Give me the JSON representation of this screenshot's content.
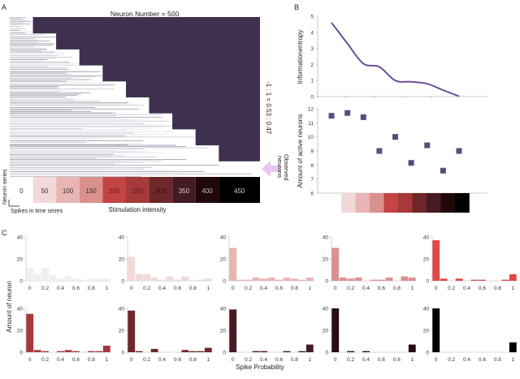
{
  "panels": {
    "A": {
      "label": "A",
      "title": "Neuron Number = 500",
      "ratio_text": "-1 : 1 = 0.53 : 0.47",
      "observed_label_line1": "Observed",
      "observed_label_line2": "neurons",
      "y_axis_label": "Neuron series",
      "x_scale_label": "Spikes in time seires",
      "x_axis_label": "Stimulation intensity",
      "background_color": "#3f3050",
      "arrow_color": "#e5c6f0",
      "stimulation_levels": [
        {
          "label": "0",
          "color": "#ffffff",
          "text_color": "#333333"
        },
        {
          "label": "50",
          "color": "#f2d9d9",
          "text_color": "#333333"
        },
        {
          "label": "100",
          "color": "#e8b5b4",
          "text_color": "#333333"
        },
        {
          "label": "150",
          "color": "#da918e",
          "text_color": "#333333"
        },
        {
          "label": "200",
          "color": "#c34442",
          "text_color": "#6a1e1e"
        },
        {
          "label": "250",
          "color": "#a6393a",
          "text_color": "#5a1a1a"
        },
        {
          "label": "300",
          "color": "#6e2728",
          "text_color": "#3a1010"
        },
        {
          "label": "350",
          "color": "#441a23",
          "text_color": "#d8c8c8"
        },
        {
          "label": "400",
          "color": "#200808",
          "text_color": "#c8b8b8"
        },
        {
          "label": "450",
          "color": "#000000",
          "text_color": "#cccccc"
        }
      ]
    },
    "B": {
      "label": "B"
    },
    "C": {
      "label": "C"
    }
  },
  "chart_data": [
    {
      "id": "B-top",
      "type": "line",
      "title": "",
      "xlabel": "",
      "ylabel": "Informationentropy",
      "ylim": [
        0,
        5
      ],
      "yticks": [
        "0",
        "1",
        "2",
        "3",
        "4",
        "5"
      ],
      "x": [
        1,
        2,
        3,
        4,
        5,
        6,
        7,
        8,
        9
      ],
      "xlim": [
        0,
        12
      ],
      "values": [
        4.6,
        3.3,
        2.05,
        1.85,
        1.0,
        0.92,
        0.8,
        0.4,
        0.02
      ],
      "color": "#6b4f9a"
    },
    {
      "id": "B-bottom",
      "type": "scatter",
      "title": "",
      "xlabel": "",
      "ylabel": "Amount of active neurons",
      "ylim": [
        6,
        12
      ],
      "yticks": [
        "6",
        "7",
        "8",
        "9",
        "10",
        "11",
        "12"
      ],
      "x": [
        1,
        2,
        3,
        4,
        5,
        6,
        7,
        8,
        9
      ],
      "xlim": [
        0,
        12
      ],
      "values": [
        11.5,
        11.7,
        11.4,
        9.0,
        10.0,
        8.15,
        9.4,
        7.6,
        9.0
      ],
      "color": "#5e4a80",
      "color_strip": [
        "#f2d9d9",
        "#e8b5b4",
        "#da918e",
        "#c34442",
        "#a6393a",
        "#6e2728",
        "#441a23",
        "#200808",
        "#000000"
      ]
    },
    {
      "id": "C-histograms",
      "type": "bar",
      "xlabel": "Spike Probability",
      "ylabel": "Amount of neuron",
      "ylim": [
        0,
        40
      ],
      "yticks": [
        "0",
        "20",
        "40"
      ],
      "xticks": [
        "0",
        "0.2",
        "0.4",
        "0.6",
        "0.8",
        "1"
      ],
      "bins": [
        0,
        0.1,
        0.2,
        0.3,
        0.4,
        0.5,
        0.6,
        0.7,
        0.8,
        0.9,
        1.0
      ],
      "series": [
        {
          "name": "0",
          "color": "#efefef",
          "values": [
            12,
            6,
            12,
            5,
            2,
            4,
            2,
            1,
            2,
            2,
            2
          ]
        },
        {
          "name": "50",
          "color": "#f2d9d9",
          "values": [
            22,
            6,
            6,
            3,
            1,
            4,
            1,
            4,
            0,
            1,
            2
          ]
        },
        {
          "name": "100",
          "color": "#e8b5b4",
          "values": [
            30,
            1,
            1,
            3,
            2,
            3,
            1,
            3,
            2,
            1,
            3
          ]
        },
        {
          "name": "150",
          "color": "#da918e",
          "values": [
            30,
            3,
            2,
            3,
            0,
            1,
            1,
            3,
            0,
            4,
            3
          ]
        },
        {
          "name": "200",
          "color": "#e04848",
          "values": [
            37,
            2,
            0,
            2,
            0,
            1,
            1,
            0,
            0,
            1,
            6
          ]
        },
        {
          "name": "250",
          "color": "#a6393a",
          "values": [
            35,
            2,
            1,
            0,
            1,
            2,
            1,
            0,
            1,
            1,
            6
          ]
        },
        {
          "name": "300",
          "color": "#6e2728",
          "values": [
            38,
            1,
            0,
            3,
            0,
            0,
            0,
            2,
            1,
            1,
            4
          ]
        },
        {
          "name": "350",
          "color": "#441a23",
          "values": [
            39,
            0,
            0,
            1,
            1,
            0,
            0,
            1,
            0,
            1,
            7
          ]
        },
        {
          "name": "400",
          "color": "#2a0c12",
          "values": [
            40,
            0,
            1,
            0,
            1,
            0,
            0,
            0,
            0,
            0,
            7
          ]
        },
        {
          "name": "450",
          "color": "#000000",
          "values": [
            40,
            0,
            0,
            0,
            0,
            0,
            0,
            0,
            0,
            0,
            9
          ]
        }
      ]
    }
  ]
}
